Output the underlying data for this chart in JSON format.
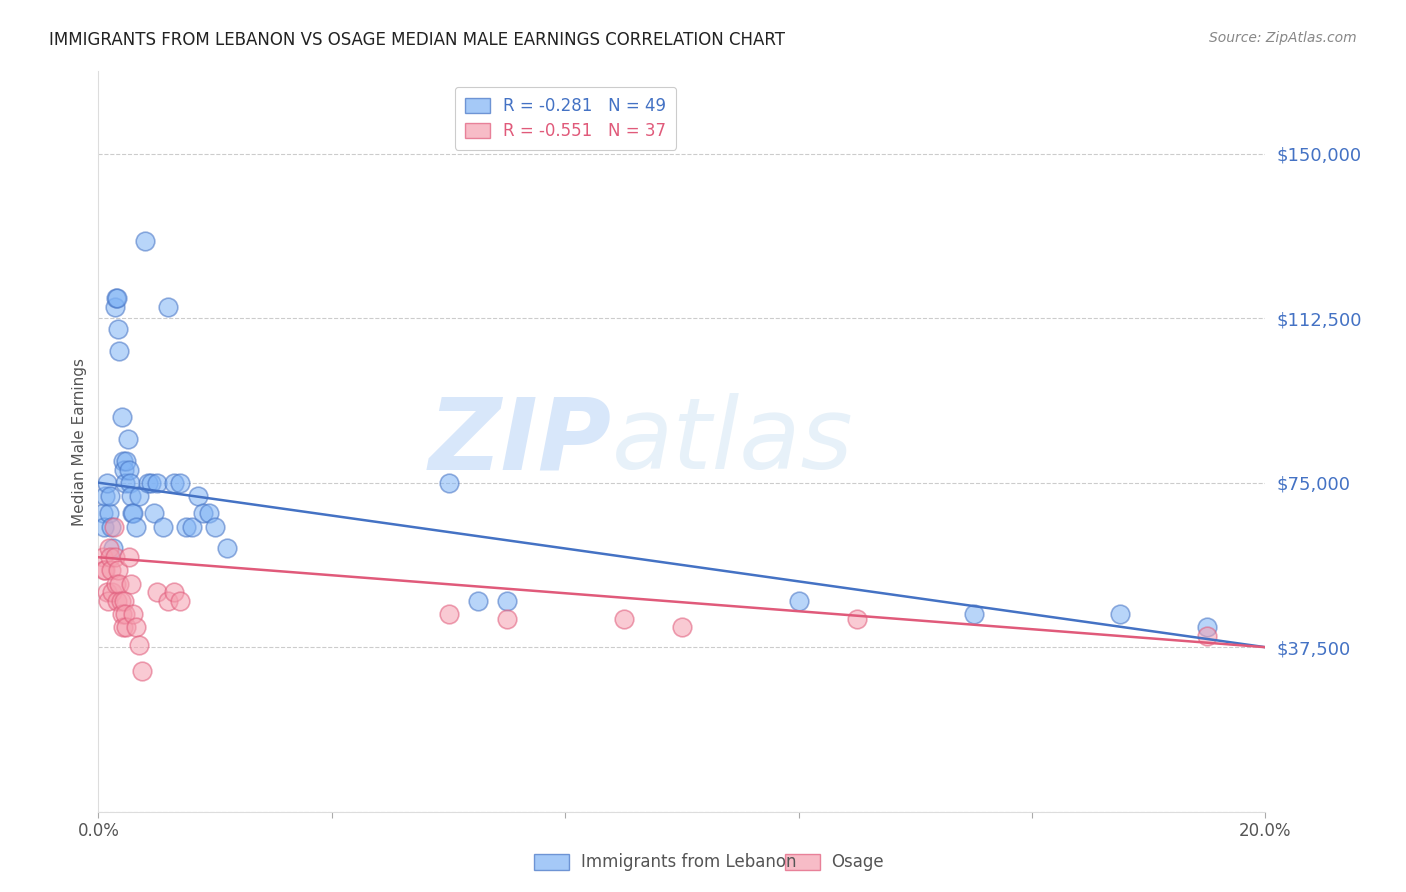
{
  "title": "IMMIGRANTS FROM LEBANON VS OSAGE MEDIAN MALE EARNINGS CORRELATION CHART",
  "source": "Source: ZipAtlas.com",
  "ylabel": "Median Male Earnings",
  "xlim": [
    0.0,
    0.2
  ],
  "ylim": [
    0,
    168750
  ],
  "yticks": [
    0,
    37500,
    75000,
    112500,
    150000
  ],
  "ytick_labels": [
    "",
    "$37,500",
    "$75,000",
    "$112,500",
    "$150,000"
  ],
  "xticks": [
    0.0,
    0.04,
    0.08,
    0.12,
    0.16,
    0.2
  ],
  "xtick_labels": [
    "0.0%",
    "",
    "",
    "",
    "",
    "20.0%"
  ],
  "background_color": "#ffffff",
  "grid_color": "#cccccc",
  "watermark_zip": "ZIP",
  "watermark_atlas": "atlas",
  "legend_blue_r": "R = -0.281",
  "legend_blue_n": "N = 49",
  "legend_pink_r": "R = -0.551",
  "legend_pink_n": "N = 37",
  "blue_color": "#7fb3f5",
  "pink_color": "#f5a0b0",
  "blue_line_color": "#4472c4",
  "pink_line_color": "#e05a7a",
  "title_color": "#222222",
  "ylabel_color": "#555555",
  "ytick_color": "#4472c4",
  "source_color": "#888888",
  "blue_label": "Immigrants from Lebanon",
  "pink_label": "Osage",
  "blue_points": [
    [
      0.0008,
      68000
    ],
    [
      0.001,
      65000
    ],
    [
      0.0012,
      72000
    ],
    [
      0.0015,
      75000
    ],
    [
      0.0018,
      68000
    ],
    [
      0.002,
      72000
    ],
    [
      0.0022,
      65000
    ],
    [
      0.0025,
      60000
    ],
    [
      0.0028,
      115000
    ],
    [
      0.003,
      117000
    ],
    [
      0.0032,
      117000
    ],
    [
      0.0034,
      110000
    ],
    [
      0.0036,
      105000
    ],
    [
      0.004,
      90000
    ],
    [
      0.0042,
      80000
    ],
    [
      0.0044,
      78000
    ],
    [
      0.0046,
      75000
    ],
    [
      0.0048,
      80000
    ],
    [
      0.005,
      85000
    ],
    [
      0.0052,
      78000
    ],
    [
      0.0054,
      75000
    ],
    [
      0.0056,
      72000
    ],
    [
      0.0058,
      68000
    ],
    [
      0.006,
      68000
    ],
    [
      0.0065,
      65000
    ],
    [
      0.007,
      72000
    ],
    [
      0.008,
      130000
    ],
    [
      0.0085,
      75000
    ],
    [
      0.009,
      75000
    ],
    [
      0.0095,
      68000
    ],
    [
      0.01,
      75000
    ],
    [
      0.011,
      65000
    ],
    [
      0.012,
      115000
    ],
    [
      0.013,
      75000
    ],
    [
      0.014,
      75000
    ],
    [
      0.015,
      65000
    ],
    [
      0.016,
      65000
    ],
    [
      0.017,
      72000
    ],
    [
      0.018,
      68000
    ],
    [
      0.019,
      68000
    ],
    [
      0.02,
      65000
    ],
    [
      0.022,
      60000
    ],
    [
      0.06,
      75000
    ],
    [
      0.065,
      48000
    ],
    [
      0.07,
      48000
    ],
    [
      0.12,
      48000
    ],
    [
      0.15,
      45000
    ],
    [
      0.175,
      45000
    ],
    [
      0.19,
      42000
    ]
  ],
  "pink_points": [
    [
      0.0008,
      58000
    ],
    [
      0.001,
      55000
    ],
    [
      0.0012,
      55000
    ],
    [
      0.0014,
      50000
    ],
    [
      0.0016,
      48000
    ],
    [
      0.0018,
      60000
    ],
    [
      0.002,
      58000
    ],
    [
      0.0022,
      55000
    ],
    [
      0.0024,
      50000
    ],
    [
      0.0026,
      65000
    ],
    [
      0.0028,
      58000
    ],
    [
      0.003,
      52000
    ],
    [
      0.0032,
      48000
    ],
    [
      0.0034,
      55000
    ],
    [
      0.0036,
      52000
    ],
    [
      0.0038,
      48000
    ],
    [
      0.004,
      45000
    ],
    [
      0.0042,
      42000
    ],
    [
      0.0044,
      48000
    ],
    [
      0.0046,
      45000
    ],
    [
      0.0048,
      42000
    ],
    [
      0.0052,
      58000
    ],
    [
      0.0056,
      52000
    ],
    [
      0.006,
      45000
    ],
    [
      0.0065,
      42000
    ],
    [
      0.007,
      38000
    ],
    [
      0.0075,
      32000
    ],
    [
      0.01,
      50000
    ],
    [
      0.012,
      48000
    ],
    [
      0.013,
      50000
    ],
    [
      0.014,
      48000
    ],
    [
      0.06,
      45000
    ],
    [
      0.07,
      44000
    ],
    [
      0.09,
      44000
    ],
    [
      0.1,
      42000
    ],
    [
      0.13,
      44000
    ],
    [
      0.19,
      40000
    ]
  ]
}
